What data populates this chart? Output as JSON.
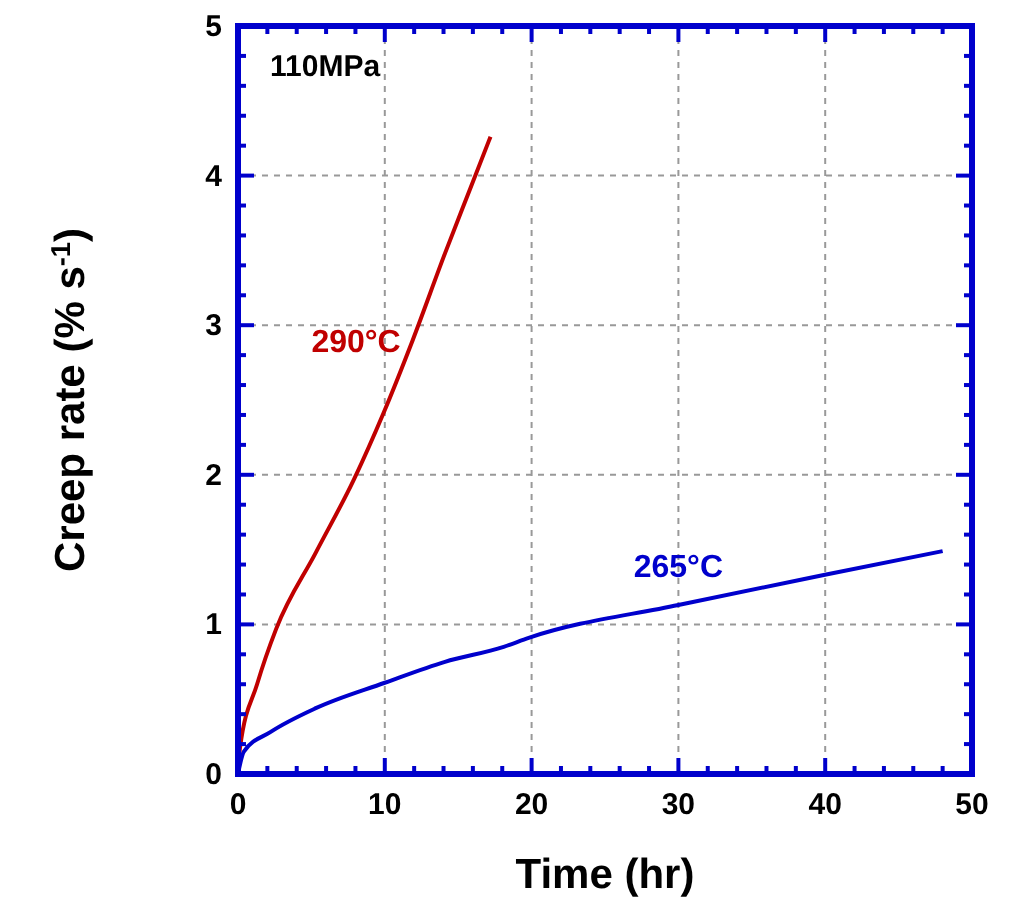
{
  "chart_data": {
    "type": "line",
    "xlabel": "Time (hr)",
    "ylabel": "Creep rate (% s$^{-1}$)",
    "xlim": [
      0,
      50
    ],
    "xticks": [
      0,
      10,
      20,
      30,
      40,
      50
    ],
    "ylim": [
      0,
      5
    ],
    "yticks": [
      0,
      1,
      2,
      3,
      4,
      5
    ],
    "grid": true,
    "line_style": "solid",
    "series": [
      {
        "name": "290°C",
        "color": "#c00000",
        "x": [
          0,
          0.13,
          1.3,
          2.6,
          5.3,
          7.9,
          9.9,
          11.9,
          14.1,
          15.85,
          17.2
        ],
        "values": [
          0,
          0.17,
          0.6,
          0.97,
          1.48,
          1.97,
          2.41,
          2.9,
          3.48,
          3.92,
          4.26
        ]
      },
      {
        "name": "265°C",
        "color": "#0000cc",
        "x": [
          0,
          0.4,
          2.2,
          5.3,
          10,
          14.1,
          18.1,
          19.8,
          30,
          39.9,
          48
        ],
        "values": [
          0,
          0.15,
          0.28,
          0.44,
          0.61,
          0.75,
          0.85,
          0.91,
          1.13,
          1.33,
          1.49
        ]
      }
    ],
    "annotations": [
      "110MPa"
    ]
  }
}
